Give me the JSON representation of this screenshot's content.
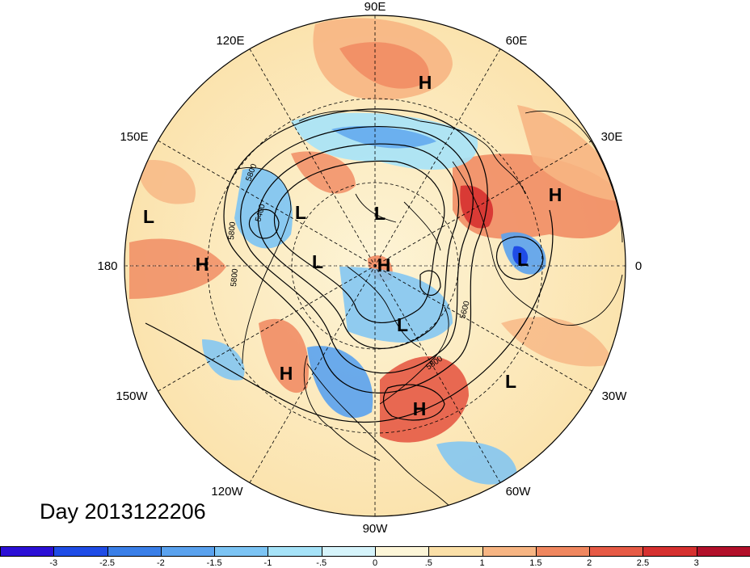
{
  "longitude_labels": [
    {
      "text": "90E"
    },
    {
      "text": "60E"
    },
    {
      "text": "30E"
    },
    {
      "text": "0"
    },
    {
      "text": "30W"
    },
    {
      "text": "60W"
    },
    {
      "text": "90W"
    },
    {
      "text": "120W"
    },
    {
      "text": "150W"
    },
    {
      "text": "180"
    },
    {
      "text": "150E"
    },
    {
      "text": "120E"
    }
  ],
  "pressure_centers": [
    {
      "type": "H"
    },
    {
      "type": "H"
    },
    {
      "type": "H"
    },
    {
      "type": "H"
    },
    {
      "type": "H"
    },
    {
      "type": "H"
    },
    {
      "type": "L"
    },
    {
      "type": "L"
    },
    {
      "type": "L"
    },
    {
      "type": "L"
    },
    {
      "type": "L"
    },
    {
      "type": "L"
    },
    {
      "type": "L"
    }
  ],
  "contour_labels": [
    "5800",
    "5400",
    "5800",
    "5800",
    "5600",
    "5800"
  ],
  "date_label": "Day 2013122206",
  "colorbar": {
    "colors": [
      "#2b0fd6",
      "#1f4ce6",
      "#3a7fe8",
      "#5aa2ee",
      "#7cc4f4",
      "#a6e3f8",
      "#d6f4fb",
      "#fdf6d8",
      "#fbe0a8",
      "#f7b583",
      "#f0875f",
      "#e65a45",
      "#d6302f",
      "#b2102a"
    ],
    "tick_labels": [
      "-3",
      "-2.5",
      "-2",
      "-1.5",
      "-1",
      "-.5",
      "0",
      ".5",
      "1",
      "1.5",
      "2",
      "2.5",
      "3"
    ]
  }
}
